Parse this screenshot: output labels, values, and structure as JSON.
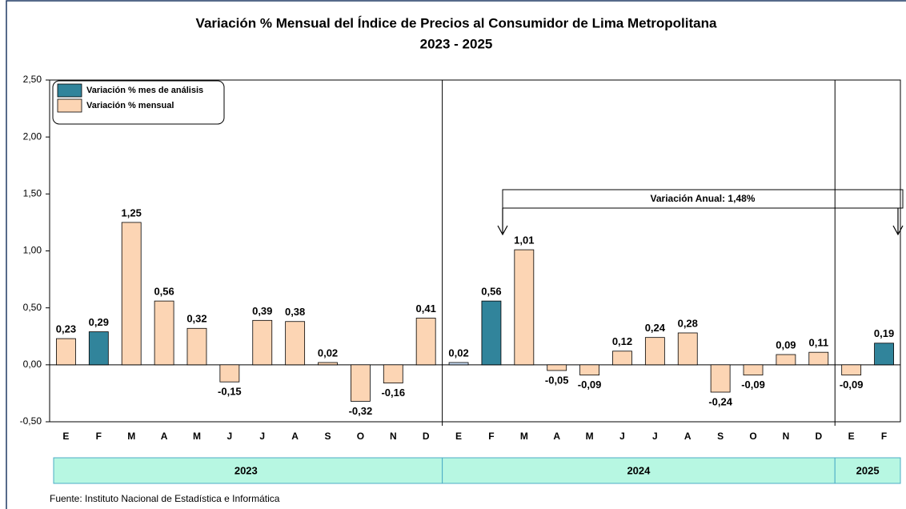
{
  "chart_data": {
    "type": "bar",
    "title": "Variación % Mensual del Índice de Precios al Consumidor de Lima Metropolitana",
    "subtitle": "2023 - 2025",
    "ylim": [
      -0.5,
      2.5
    ],
    "yticks": [
      {
        "value": -0.5,
        "label": "-0,50"
      },
      {
        "value": 0,
        "label": "0,00"
      },
      {
        "value": 0.5,
        "label": "0,50"
      },
      {
        "value": 1,
        "label": "1,00"
      },
      {
        "value": 1.5,
        "label": "1,50"
      },
      {
        "value": 2,
        "label": "2,00"
      },
      {
        "value": 2.5,
        "label": "2,50"
      }
    ],
    "legend": [
      {
        "name": "Variación % mes de análisis",
        "color": "#31849b"
      },
      {
        "name": "Variación % mensual",
        "color": "#fcd5b4"
      }
    ],
    "groups": [
      {
        "label": "2023",
        "categories": [
          "E",
          "F",
          "M",
          "A",
          "M",
          "J",
          "J",
          "A",
          "S",
          "O",
          "N",
          "D"
        ],
        "values": [
          0.23,
          0.29,
          1.25,
          0.56,
          0.32,
          -0.15,
          0.39,
          0.38,
          0.02,
          -0.32,
          -0.16,
          0.41
        ],
        "value_labels": [
          "0,23",
          "0,29",
          "1,25",
          "0,56",
          "0,32",
          "-0,15",
          "0,39",
          "0,38",
          "0,02",
          "-0,32",
          "-0,16",
          "0,41"
        ],
        "colors": [
          "#fcd5b4",
          "#31849b",
          "#fcd5b4",
          "#fcd5b4",
          "#fcd5b4",
          "#fcd5b4",
          "#fcd5b4",
          "#fcd5b4",
          "#fcd5b4",
          "#fcd5b4",
          "#fcd5b4",
          "#fcd5b4"
        ]
      },
      {
        "label": "2024",
        "categories": [
          "E",
          "F",
          "M",
          "A",
          "M",
          "J",
          "J",
          "A",
          "S",
          "O",
          "N",
          "D"
        ],
        "values": [
          0.02,
          0.56,
          1.01,
          -0.05,
          -0.09,
          0.12,
          0.24,
          0.28,
          -0.24,
          -0.09,
          0.09,
          0.11
        ],
        "value_labels": [
          "0,02",
          "0,56",
          "1,01",
          "-0,05",
          "-0,09",
          "0,12",
          "0,24",
          "0,28",
          "-0,24",
          "-0,09",
          "0,09",
          "0,11"
        ],
        "colors": [
          "#c5d9f1",
          "#31849b",
          "#fcd5b4",
          "#fcd5b4",
          "#fcd5b4",
          "#fcd5b4",
          "#fcd5b4",
          "#fcd5b4",
          "#fcd5b4",
          "#fcd5b4",
          "#fcd5b4",
          "#fcd5b4"
        ]
      },
      {
        "label": "2025",
        "categories": [
          "E",
          "F"
        ],
        "values": [
          -0.09,
          0.19
        ],
        "value_labels": [
          "-0,09",
          "0,19"
        ],
        "colors": [
          "#fcd5b4",
          "#31849b"
        ]
      }
    ],
    "annotation": "Variación Anual: 1,48%",
    "source": "Fuente: Instituto Nacional de Estadística e Informática"
  }
}
